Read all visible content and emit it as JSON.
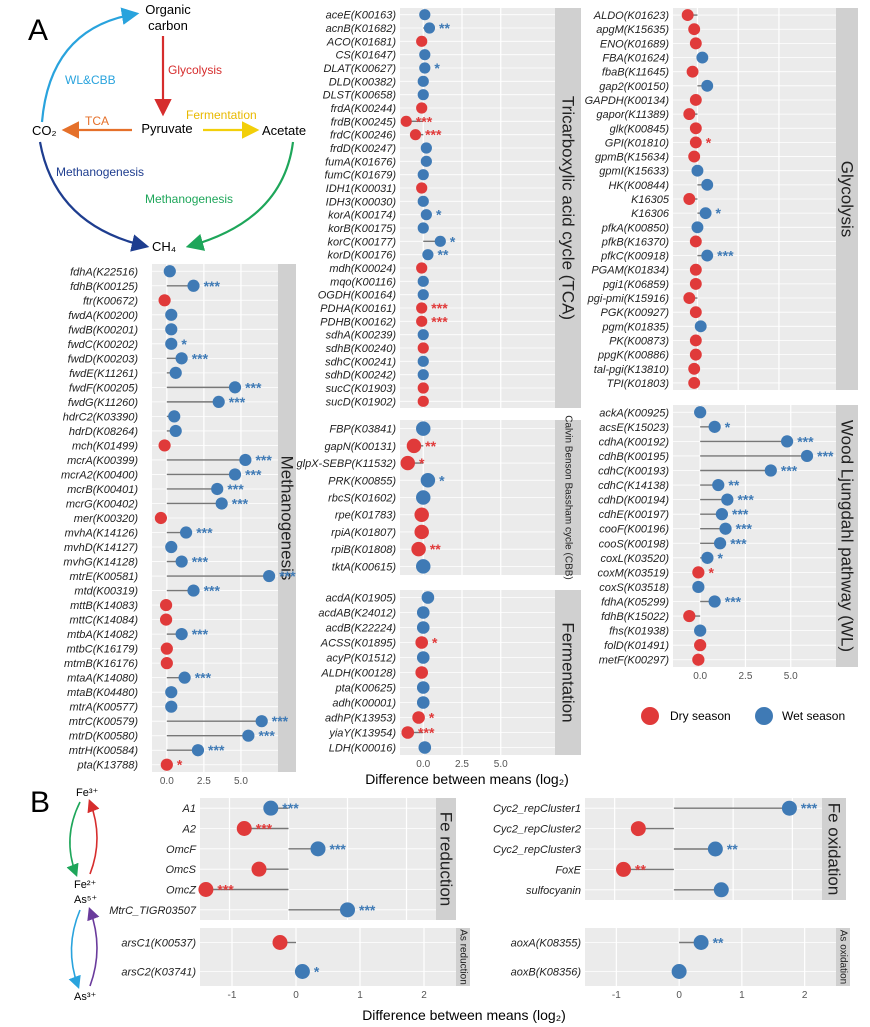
{
  "colors": {
    "dry": "#e03a3a",
    "wet": "#3f7ab5",
    "panel": "#ebebeb",
    "strip": "#d0d0d0",
    "grid": "#ffffff",
    "stem": "#777777"
  },
  "axis_title": "Difference between means (log₂)",
  "legend": {
    "dry": "Dry season",
    "wet": "Wet season"
  },
  "panel_letters": {
    "a": "A",
    "b": "B"
  },
  "diagram_a": {
    "organic": "Organic\ncarbon",
    "pyruvate": "Pyruvate",
    "co2": "CO₂",
    "acetate": "Acetate",
    "ch4": "CH₄",
    "glycolysis": "Glycolysis",
    "tca": "TCA",
    "fermentation": "Fermentation",
    "wlcbb": "WL&CBB",
    "methanogenesis_left": "Methanogenesis",
    "methanogenesis_right": "Methanogenesis"
  },
  "diagram_b": {
    "fe3": "Fe³⁺",
    "fe2": "Fe²⁺",
    "as5": "As⁵⁺",
    "as3": "As³⁺"
  },
  "chart_data": [
    {
      "type": "lollipop",
      "title": "Methanogenesis",
      "xticks": [
        "0.0",
        "2.5",
        "5.0"
      ],
      "xlim": [
        -1,
        7.5
      ],
      "genes": [
        [
          "fdhA(K22516)",
          0.2,
          "wet",
          ""
        ],
        [
          "fdhB(K00125)",
          1.8,
          "wet",
          "***"
        ],
        [
          "ftr(K00672)",
          -0.15,
          "dry",
          ""
        ],
        [
          "fwdA(K00200)",
          0.3,
          "wet",
          ""
        ],
        [
          "fwdB(K00201)",
          0.3,
          "wet",
          ""
        ],
        [
          "fwdC(K00202)",
          0.3,
          "wet",
          "*"
        ],
        [
          "fwdD(K00203)",
          1.0,
          "wet",
          "***"
        ],
        [
          "fwdE(K11261)",
          0.6,
          "wet",
          ""
        ],
        [
          "fwdF(K00205)",
          4.6,
          "wet",
          "***"
        ],
        [
          "fwdG(K11260)",
          3.5,
          "wet",
          "***"
        ],
        [
          "hdrC2(K03390)",
          0.5,
          "wet",
          ""
        ],
        [
          "hdrD(K08264)",
          0.6,
          "wet",
          ""
        ],
        [
          "mch(K01499)",
          -0.15,
          "dry",
          ""
        ],
        [
          "mcrA(K00399)",
          5.3,
          "wet",
          "***"
        ],
        [
          "mcrA2(K00400)",
          4.6,
          "wet",
          "***"
        ],
        [
          "mcrB(K00401)",
          3.4,
          "wet",
          "***"
        ],
        [
          "mcrG(K00402)",
          3.7,
          "wet",
          "***"
        ],
        [
          "mer(K00320)",
          -0.4,
          "dry",
          ""
        ],
        [
          "mvhA(K14126)",
          1.3,
          "wet",
          "***"
        ],
        [
          "mvhD(K14127)",
          0.3,
          "wet",
          ""
        ],
        [
          "mvhG(K14128)",
          1.0,
          "wet",
          "***"
        ],
        [
          "mtrE(K00581)",
          6.9,
          "wet",
          "***"
        ],
        [
          "mtd(K00319)",
          1.8,
          "wet",
          "***"
        ],
        [
          "mttB(K14083)",
          -0.05,
          "dry",
          ""
        ],
        [
          "mttC(K14084)",
          -0.05,
          "dry",
          ""
        ],
        [
          "mtbA(K14082)",
          1.0,
          "wet",
          "***"
        ],
        [
          "mtbC(K16179)",
          0.0,
          "dry",
          ""
        ],
        [
          "mtmB(K16176)",
          0.0,
          "dry",
          ""
        ],
        [
          "mtaA(K14080)",
          1.2,
          "wet",
          "***"
        ],
        [
          "mtaB(K04480)",
          0.3,
          "wet",
          ""
        ],
        [
          "mtrA(K00577)",
          0.3,
          "wet",
          ""
        ],
        [
          "mtrC(K00579)",
          6.4,
          "wet",
          "***"
        ],
        [
          "mtrD(K00580)",
          5.5,
          "wet",
          "***"
        ],
        [
          "mtrH(K00584)",
          2.1,
          "wet",
          "***"
        ],
        [
          "pta(K13788)",
          0.0,
          "dry",
          "*"
        ]
      ]
    },
    {
      "type": "lollipop",
      "title": "Tricarboxylic acid cycle (TCA)",
      "xticks": [
        "0.0",
        "2.5",
        "5.0"
      ],
      "xlim": [
        -1.5,
        8.5
      ],
      "genes": [
        [
          "aceE(K00163)",
          0.1,
          "wet",
          ""
        ],
        [
          "acnB(K01682)",
          0.4,
          "wet",
          "**"
        ],
        [
          "ACO(K01681)",
          -0.1,
          "dry",
          ""
        ],
        [
          "CS(K01647)",
          0.1,
          "wet",
          ""
        ],
        [
          "DLAT(K00627)",
          0.1,
          "wet",
          "*"
        ],
        [
          "DLD(K00382)",
          0.0,
          "wet",
          ""
        ],
        [
          "DLST(K00658)",
          0.0,
          "wet",
          ""
        ],
        [
          "frdA(K00244)",
          -0.1,
          "dry",
          ""
        ],
        [
          "frdB(K00245)",
          -1.1,
          "dry",
          "***"
        ],
        [
          "frdC(K00246)",
          -0.5,
          "dry",
          "***"
        ],
        [
          "frdD(K00247)",
          0.2,
          "wet",
          ""
        ],
        [
          "fumA(K01676)",
          0.2,
          "wet",
          ""
        ],
        [
          "fumC(K01679)",
          0.0,
          "wet",
          ""
        ],
        [
          "IDH1(K00031)",
          -0.1,
          "dry",
          ""
        ],
        [
          "IDH3(K00030)",
          0.0,
          "wet",
          ""
        ],
        [
          "korA(K00174)",
          0.2,
          "wet",
          "*"
        ],
        [
          "korB(K00175)",
          0.0,
          "wet",
          ""
        ],
        [
          "korC(K00177)",
          1.1,
          "wet",
          "*"
        ],
        [
          "korD(K00176)",
          0.3,
          "wet",
          "**"
        ],
        [
          "mdh(K00024)",
          -0.1,
          "dry",
          ""
        ],
        [
          "mqo(K00116)",
          0.0,
          "wet",
          ""
        ],
        [
          "OGDH(K00164)",
          0.0,
          "wet",
          ""
        ],
        [
          "PDHA(K00161)",
          -0.1,
          "dry",
          "***"
        ],
        [
          "PDHB(K00162)",
          -0.1,
          "dry",
          "***"
        ],
        [
          "sdhA(K00239)",
          0.0,
          "wet",
          ""
        ],
        [
          "sdhB(K00240)",
          0.0,
          "dry",
          ""
        ],
        [
          "sdhC(K00241)",
          0.0,
          "wet",
          ""
        ],
        [
          "sdhD(K00242)",
          0.0,
          "wet",
          ""
        ],
        [
          "sucC(K01903)",
          0.0,
          "dry",
          ""
        ],
        [
          "sucD(K01902)",
          0.0,
          "dry",
          ""
        ]
      ]
    },
    {
      "type": "lollipop",
      "title": "Calvin Benson Bassham cycle (CBB)",
      "xticks": [],
      "xlim": [
        -1.5,
        8.5
      ],
      "genes": [
        [
          "FBP(K03841)",
          0.0,
          "wet",
          ""
        ],
        [
          "gapN(K00131)",
          -0.6,
          "dry",
          "**"
        ],
        [
          "glpX-SEBP(K11532)",
          -1.0,
          "dry",
          "*"
        ],
        [
          "PRK(K00855)",
          0.3,
          "wet",
          "*"
        ],
        [
          "rbcS(K01602)",
          0.0,
          "wet",
          ""
        ],
        [
          "rpe(K01783)",
          -0.1,
          "dry",
          ""
        ],
        [
          "rpiA(K01807)",
          -0.1,
          "dry",
          ""
        ],
        [
          "rpiB(K01808)",
          -0.3,
          "dry",
          "**"
        ],
        [
          "tktA(K00615)",
          0.0,
          "wet",
          ""
        ]
      ]
    },
    {
      "type": "lollipop",
      "title": "Fermentation",
      "xticks": [
        "0.0",
        "2.5",
        "5.0"
      ],
      "xlim": [
        -1.5,
        8.5
      ],
      "genes": [
        [
          "acdA(K01905)",
          0.3,
          "wet",
          ""
        ],
        [
          "acdAB(K24012)",
          0.0,
          "wet",
          ""
        ],
        [
          "acdB(K22224)",
          0.0,
          "wet",
          ""
        ],
        [
          "ACSS(K01895)",
          -0.1,
          "dry",
          "*"
        ],
        [
          "acyP(K01512)",
          0.0,
          "wet",
          ""
        ],
        [
          "ALDH(K00128)",
          -0.1,
          "dry",
          ""
        ],
        [
          "pta(K00625)",
          0.0,
          "wet",
          ""
        ],
        [
          "adh(K00001)",
          0.0,
          "wet",
          ""
        ],
        [
          "adhP(K13953)",
          -0.3,
          "dry",
          "*"
        ],
        [
          "yiaY(K13954)",
          -1.0,
          "dry",
          "***"
        ],
        [
          "LDH(K00016)",
          0.1,
          "wet",
          ""
        ]
      ]
    },
    {
      "type": "lollipop",
      "title": "Glycolysis",
      "xticks": [],
      "xlim": [
        -1.5,
        8.5
      ],
      "genes": [
        [
          "ALDO(K01623)",
          -0.6,
          "dry",
          ""
        ],
        [
          "apgM(K15635)",
          -0.2,
          "dry",
          ""
        ],
        [
          "ENO(K01689)",
          -0.1,
          "dry",
          ""
        ],
        [
          "FBA(K01624)",
          0.3,
          "wet",
          ""
        ],
        [
          "fbaB(K11645)",
          -0.3,
          "dry",
          ""
        ],
        [
          "gap2(K00150)",
          0.6,
          "wet",
          ""
        ],
        [
          "GAPDH(K00134)",
          -0.1,
          "dry",
          ""
        ],
        [
          "gapor(K11389)",
          -0.5,
          "dry",
          ""
        ],
        [
          "glk(K00845)",
          -0.1,
          "dry",
          ""
        ],
        [
          "GPI(K01810)",
          -0.1,
          "dry",
          "*"
        ],
        [
          "gpmB(K15634)",
          -0.2,
          "dry",
          ""
        ],
        [
          "gpmI(K15633)",
          0.0,
          "wet",
          ""
        ],
        [
          "HK(K00844)",
          0.6,
          "wet",
          ""
        ],
        [
          "K16305",
          -0.5,
          "dry",
          ""
        ],
        [
          "K16306",
          0.5,
          "wet",
          "*"
        ],
        [
          "pfkA(K00850)",
          0.0,
          "wet",
          ""
        ],
        [
          "pfkB(K16370)",
          -0.1,
          "dry",
          ""
        ],
        [
          "pfkC(K00918)",
          0.6,
          "wet",
          "***"
        ],
        [
          "PGAM(K01834)",
          -0.1,
          "dry",
          ""
        ],
        [
          "pgi1(K06859)",
          -0.1,
          "dry",
          ""
        ],
        [
          "pgi-pmi(K15916)",
          -0.5,
          "dry",
          ""
        ],
        [
          "PGK(K00927)",
          -0.1,
          "dry",
          ""
        ],
        [
          "pgm(K01835)",
          0.2,
          "wet",
          ""
        ],
        [
          "PK(K00873)",
          -0.1,
          "dry",
          ""
        ],
        [
          "ppgK(K00886)",
          -0.1,
          "dry",
          ""
        ],
        [
          "tal-pgi(K13810)",
          -0.2,
          "dry",
          ""
        ],
        [
          "TPI(K01803)",
          -0.2,
          "dry",
          ""
        ]
      ]
    },
    {
      "type": "lollipop",
      "title": "Wood Ljungdahl pathway (WL)",
      "xticks": [
        "0.0",
        "2.5",
        "5.0"
      ],
      "xlim": [
        -1.5,
        7.5
      ],
      "genes": [
        [
          "ackA(K00925)",
          0.0,
          "wet",
          ""
        ],
        [
          "acsE(K15023)",
          0.8,
          "wet",
          "*"
        ],
        [
          "cdhA(K00192)",
          4.8,
          "wet",
          "***"
        ],
        [
          "cdhB(K00195)",
          5.9,
          "wet",
          "***"
        ],
        [
          "cdhC(K00193)",
          3.9,
          "wet",
          "***"
        ],
        [
          "cdhC(K14138)",
          1.0,
          "wet",
          "**"
        ],
        [
          "cdhD(K00194)",
          1.5,
          "wet",
          "***"
        ],
        [
          "cdhE(K00197)",
          1.2,
          "wet",
          "***"
        ],
        [
          "cooF(K00196)",
          1.4,
          "wet",
          "***"
        ],
        [
          "cooS(K00198)",
          1.1,
          "wet",
          "***"
        ],
        [
          "coxL(K03520)",
          0.4,
          "wet",
          "*"
        ],
        [
          "coxM(K03519)",
          -0.1,
          "dry",
          "*"
        ],
        [
          "coxS(K03518)",
          -0.1,
          "wet",
          ""
        ],
        [
          "fdhA(K05299)",
          0.8,
          "wet",
          "***"
        ],
        [
          "fdhB(K15022)",
          -0.6,
          "dry",
          ""
        ],
        [
          "fhs(K01938)",
          0.0,
          "wet",
          ""
        ],
        [
          "folD(K01491)",
          0.0,
          "dry",
          ""
        ],
        [
          "metF(K00297)",
          -0.1,
          "dry",
          ""
        ]
      ]
    },
    {
      "type": "lollipop",
      "title": "Fe reduction",
      "xticks": [
        "-1",
        "0",
        "1",
        "2"
      ],
      "xlim": [
        -1.5,
        2.5
      ],
      "genes": [
        [
          "A1",
          -0.3,
          "wet",
          "***"
        ],
        [
          "A2",
          -0.75,
          "dry",
          "***"
        ],
        [
          "OmcF",
          0.5,
          "wet",
          "***"
        ],
        [
          "OmcS",
          -0.5,
          "dry",
          ""
        ],
        [
          "OmcZ",
          -1.4,
          "dry",
          "***"
        ],
        [
          "MtrC_TIGR03507",
          1.0,
          "wet",
          "***"
        ]
      ]
    },
    {
      "type": "lollipop",
      "title": "Fe oxidation",
      "xticks": [
        "-1",
        "0",
        "1",
        "2"
      ],
      "xlim": [
        -1.5,
        2.5
      ],
      "genes": [
        [
          "Cyc2_repCluster1",
          1.95,
          "wet",
          "***"
        ],
        [
          "Cyc2_repCluster2",
          -0.6,
          "dry",
          ""
        ],
        [
          "Cyc2_repCluster3",
          0.7,
          "wet",
          "**"
        ],
        [
          "FoxE",
          -0.85,
          "dry",
          "**"
        ],
        [
          "sulfocyanin",
          0.8,
          "wet",
          ""
        ]
      ]
    },
    {
      "type": "lollipop",
      "title": "As reduction",
      "xticks": [
        "-1",
        "0",
        "1",
        "2"
      ],
      "xlim": [
        -1.5,
        2.5
      ],
      "genes": [
        [
          "arsC1(K00537)",
          -0.25,
          "dry",
          ""
        ],
        [
          "arsC2(K03741)",
          0.1,
          "wet",
          "*"
        ]
      ]
    },
    {
      "type": "lollipop",
      "title": "As oxidation",
      "xticks": [
        "-1",
        "0",
        "1",
        "2"
      ],
      "xlim": [
        -1.5,
        2.5
      ],
      "genes": [
        [
          "aoxA(K08355)",
          0.35,
          "wet",
          "**"
        ],
        [
          "aoxB(K08356)",
          0.0,
          "wet",
          ""
        ]
      ]
    }
  ]
}
